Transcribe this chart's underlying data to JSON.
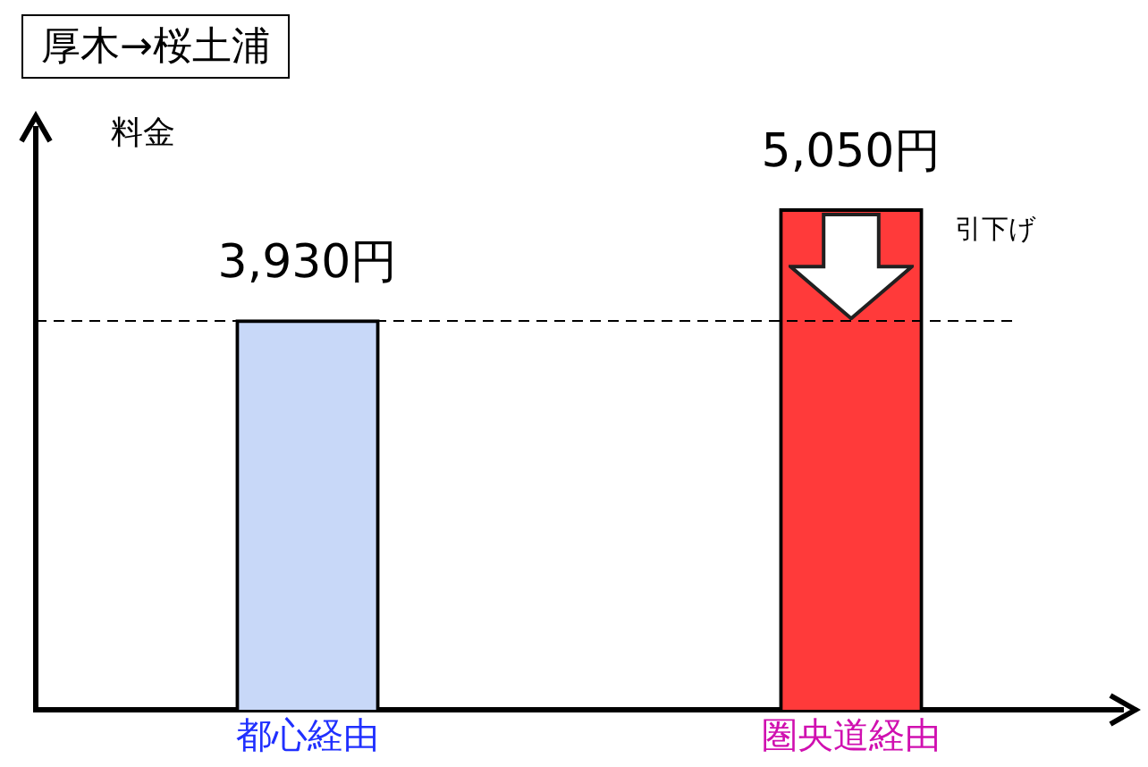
{
  "chart_data": {
    "type": "bar",
    "title": "厚木→桜土浦",
    "ylabel": "料金",
    "categories": [
      "都心経由",
      "圏央道経由"
    ],
    "values": [
      3930,
      5050
    ],
    "colors": [
      "#c8d8f8",
      "#ff3a3a"
    ],
    "value_labels": [
      "3,930円",
      "5,050円"
    ],
    "ref_lines": [
      {
        "axis": "y",
        "value": 3930,
        "color": "#000000",
        "line_style": "dashed"
      }
    ],
    "annotations": [
      "引下げ"
    ],
    "grid": false,
    "legend": false
  }
}
